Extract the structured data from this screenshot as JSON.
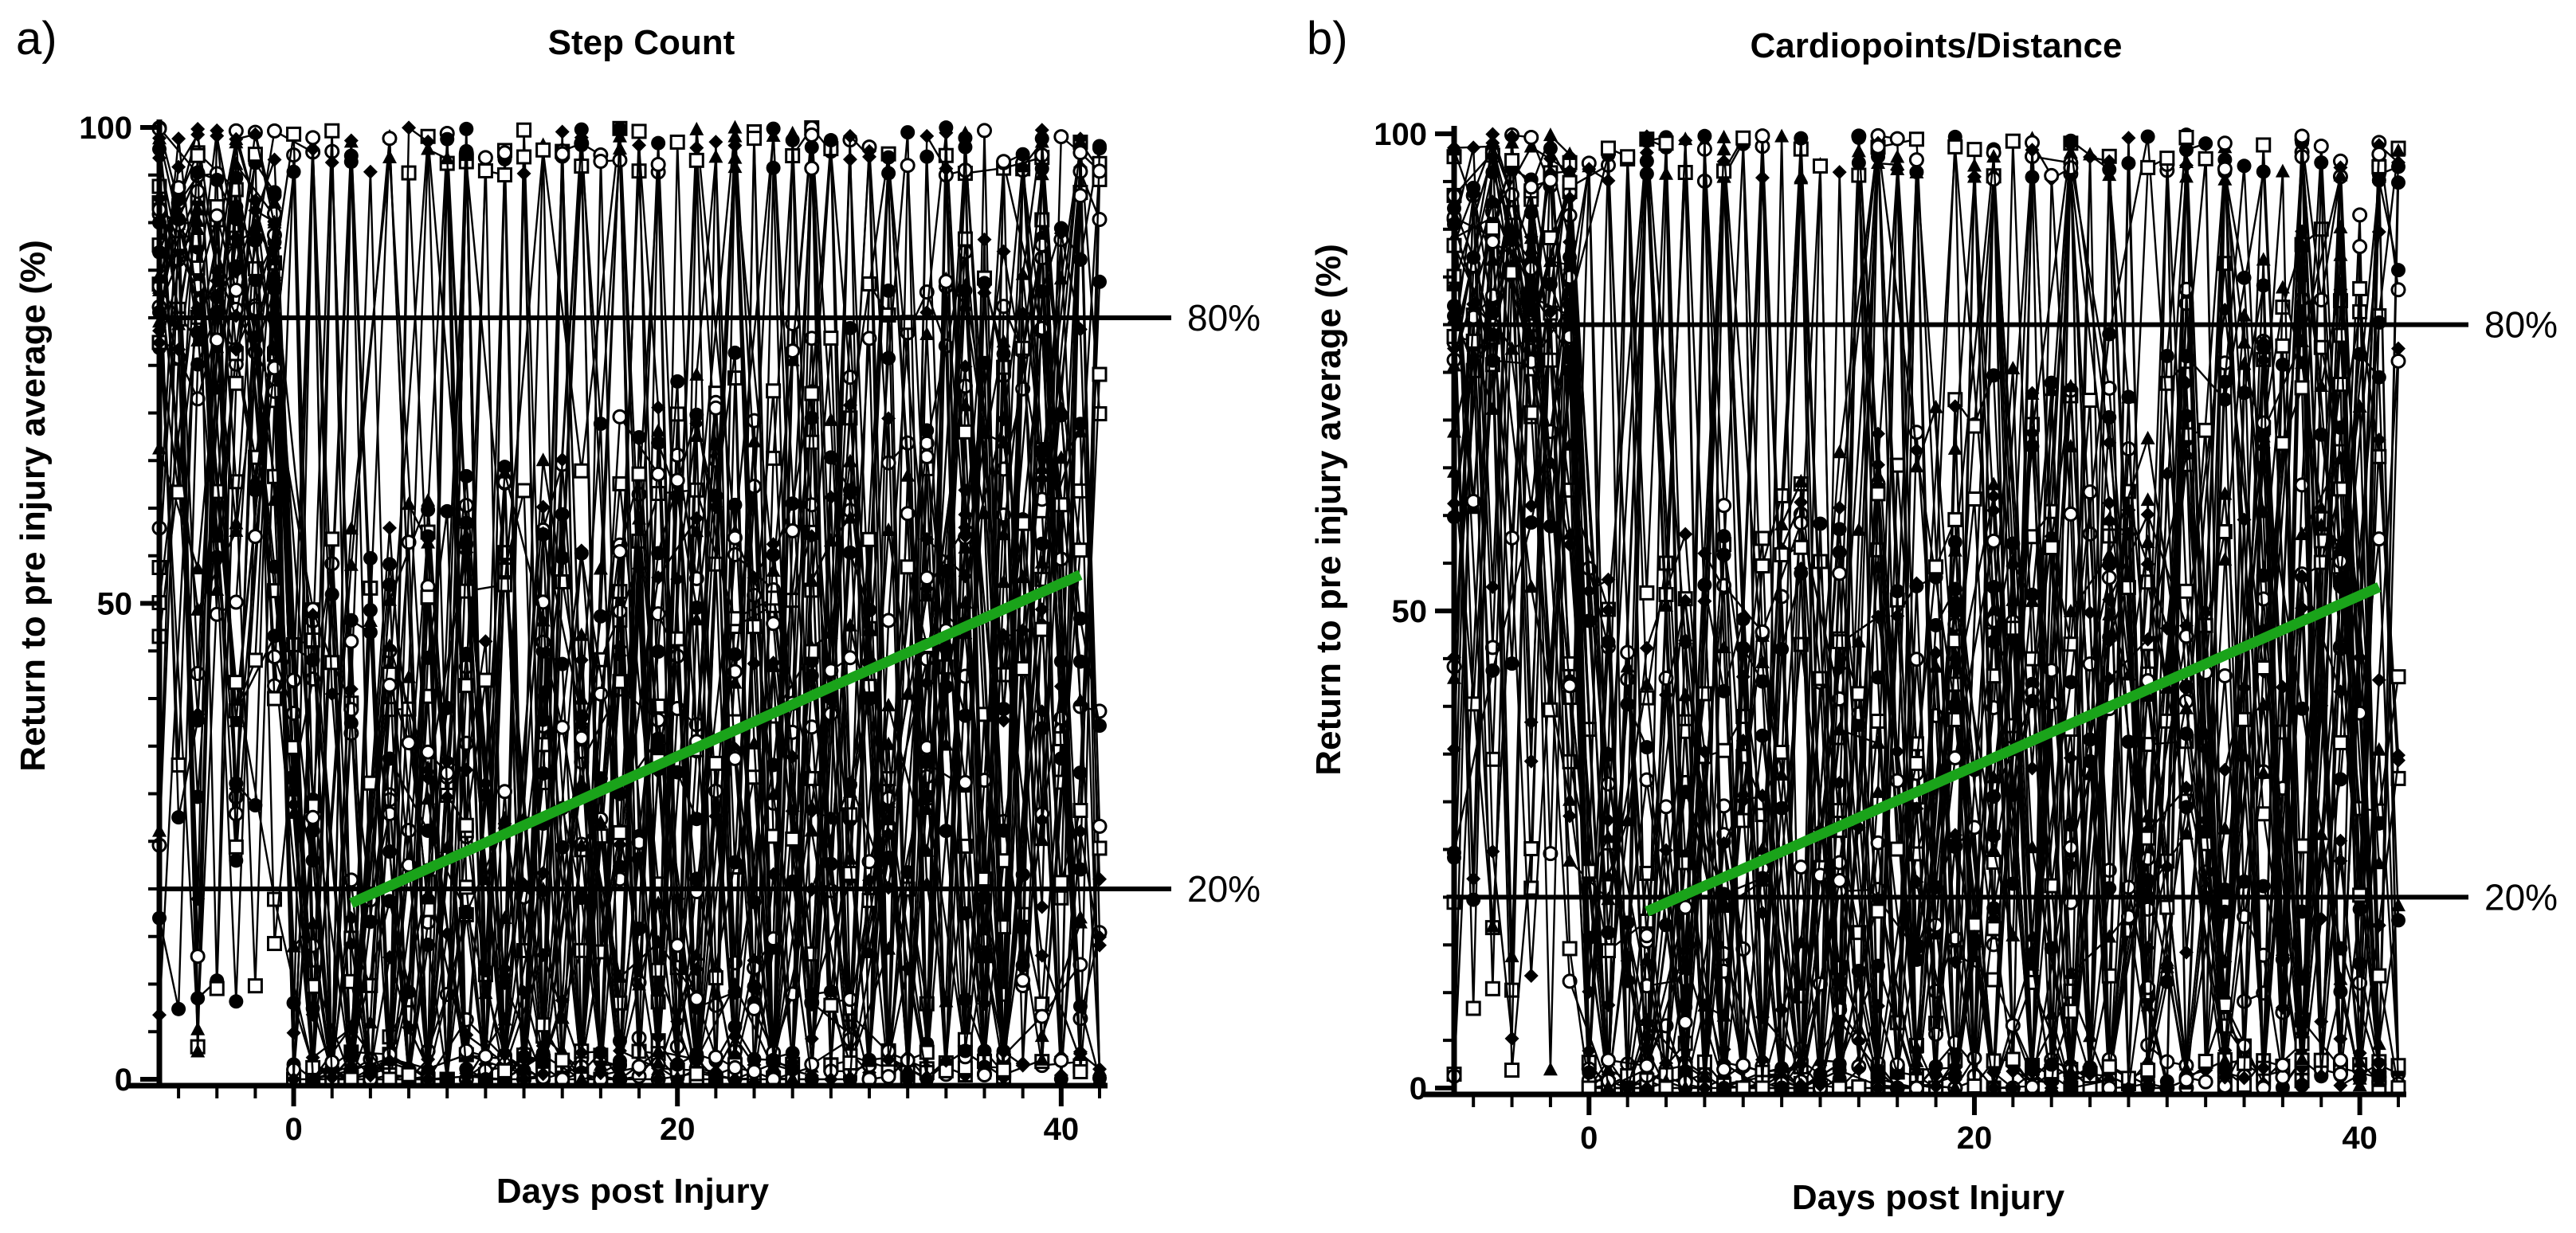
{
  "chart_data": [
    {
      "panel": "a)",
      "type": "line",
      "title": "Step Count",
      "xlabel": "Days post Injury",
      "ylabel": "Return to pre injury average (%)",
      "xlim": [
        -7,
        42
      ],
      "ylim": [
        0,
        100
      ],
      "xticks": [
        0,
        20,
        40
      ],
      "yticks": [
        0,
        50,
        100
      ],
      "reference_lines": [
        {
          "y": 80,
          "label": "80%"
        },
        {
          "y": 20,
          "label": "20%"
        }
      ],
      "trend_line": {
        "x": [
          3,
          41
        ],
        "y": [
          18.5,
          53
        ],
        "color": "#1aa31a"
      },
      "series_count": 40
    },
    {
      "panel": "b)",
      "type": "line",
      "title": "Cardiopoints/Distance",
      "xlabel": "Days post Injury",
      "ylabel": "Return to pre injury average (%)",
      "xlim": [
        -7,
        42
      ],
      "ylim": [
        0,
        100
      ],
      "xticks": [
        0,
        20,
        40
      ],
      "yticks": [
        0,
        50,
        100
      ],
      "reference_lines": [
        {
          "y": 80,
          "label": "80%"
        },
        {
          "y": 20,
          "label": "20%"
        }
      ],
      "trend_line": {
        "x": [
          3,
          41
        ],
        "y": [
          18.5,
          52.5
        ],
        "color": "#1aa31a"
      },
      "series_count": 40
    }
  ],
  "colors": {
    "data": "#000000",
    "trend": "#1aa31a"
  }
}
